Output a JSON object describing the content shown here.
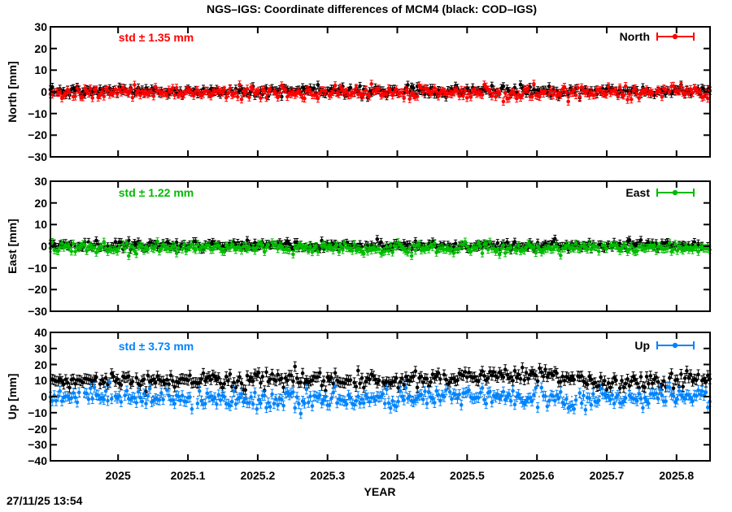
{
  "chart_data": {
    "type": "scatter",
    "title": "NGS–IGS: Coordinate differences of MCM4 (black: COD–IGS)",
    "xlabel": "YEAR",
    "timestamp": "27/11/25 13:54",
    "grid": false,
    "legend_position": "top-right-inside",
    "x_range": [
      2024.903,
      2025.848
    ],
    "x_tick_values": [
      2025,
      2025.1,
      2025.2,
      2025.3,
      2025.4,
      2025.5,
      2025.6,
      2025.7,
      2025.8
    ],
    "x_tick_labels": [
      "2025",
      "2025.1",
      "2025.2",
      "2025.3",
      "2025.4",
      "2025.5",
      "2025.6",
      "2025.7",
      "2025.8"
    ],
    "point_interval_years": 0.0027378,
    "panels": [
      {
        "id": "north",
        "ylabel": "North [mm]",
        "ylim": [
          -30,
          30
        ],
        "ytick_step": 10,
        "std_label": "std ± 1.35 mm",
        "std_mm": 1.35,
        "legend_label": "North",
        "color": "#ff0000",
        "zero_line": true,
        "series": [
          {
            "name": "COD–IGS",
            "color": "#000000",
            "noise_std_mm": 1.05,
            "errorbar_mm": 1.7,
            "mean_points": [
              [
                2024.903,
                0.3
              ],
              [
                2025.848,
                0.3
              ]
            ]
          },
          {
            "name": "NGS–IGS",
            "color": "#ff0000",
            "noise_std_mm": 1.35,
            "errorbar_mm": 1.7,
            "mean_points": [
              [
                2024.903,
                -0.4
              ],
              [
                2025.848,
                -0.4
              ]
            ]
          }
        ]
      },
      {
        "id": "east",
        "ylabel": "East [mm]",
        "ylim": [
          -30,
          30
        ],
        "ytick_step": 10,
        "std_label": "std ± 1.22 mm",
        "std_mm": 1.22,
        "legend_label": "East",
        "color": "#00bb00",
        "zero_line": true,
        "series": [
          {
            "name": "COD–IGS",
            "color": "#000000",
            "noise_std_mm": 1.0,
            "errorbar_mm": 1.7,
            "mean_points": [
              [
                2024.903,
                0.4
              ],
              [
                2025.848,
                0.4
              ]
            ]
          },
          {
            "name": "NGS–IGS",
            "color": "#00bb00",
            "noise_std_mm": 1.22,
            "errorbar_mm": 1.7,
            "mean_points": [
              [
                2024.903,
                -0.8
              ],
              [
                2025.848,
                -0.8
              ]
            ]
          }
        ]
      },
      {
        "id": "up",
        "ylabel": "Up [mm]",
        "ylim": [
          -40,
          40
        ],
        "ytick_step": 10,
        "std_label": "std ± 3.73 mm",
        "std_mm": 3.73,
        "legend_label": "Up",
        "color": "#0084ff",
        "zero_line": true,
        "series": [
          {
            "name": "COD–IGS",
            "color": "#000000",
            "noise_std_mm": 2.6,
            "errorbar_mm": 3.0,
            "mean_points": [
              [
                2024.903,
                10.5
              ],
              [
                2025.05,
                10
              ],
              [
                2025.15,
                10.5
              ],
              [
                2025.25,
                11
              ],
              [
                2025.33,
                9.5
              ],
              [
                2025.4,
                10
              ],
              [
                2025.48,
                12
              ],
              [
                2025.55,
                13.5
              ],
              [
                2025.62,
                13.5
              ],
              [
                2025.66,
                10
              ],
              [
                2025.69,
                7.5
              ],
              [
                2025.73,
                8.5
              ],
              [
                2025.78,
                10.5
              ],
              [
                2025.848,
                11
              ]
            ]
          },
          {
            "name": "NGS–IGS",
            "color": "#0084ff",
            "noise_std_mm": 3.0,
            "errorbar_mm": 3.0,
            "mean_points": [
              [
                2024.903,
                0.5
              ],
              [
                2025.05,
                -0.5
              ],
              [
                2025.15,
                -1
              ],
              [
                2025.25,
                -2
              ],
              [
                2025.35,
                -1.5
              ],
              [
                2025.5,
                0
              ],
              [
                2025.6,
                -0.5
              ],
              [
                2025.7,
                -1.5
              ],
              [
                2025.8,
                0
              ],
              [
                2025.848,
                0.5
              ]
            ]
          }
        ]
      }
    ]
  }
}
